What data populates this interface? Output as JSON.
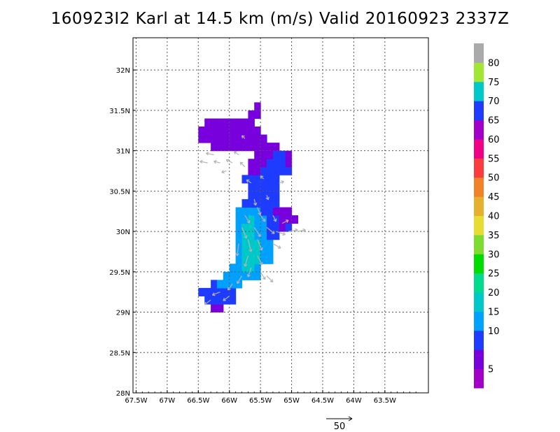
{
  "title": "160923I2 Karl at 14.5 km (m/s) Valid 20160923 2337Z",
  "map": {
    "lon_range": [
      -67.55,
      -62.8
    ],
    "lat_range": [
      28.0,
      32.4
    ],
    "x_ticks": [
      {
        "value": -67.5,
        "label": "67.5W"
      },
      {
        "value": -67.0,
        "label": "67W"
      },
      {
        "value": -66.5,
        "label": "66.5W"
      },
      {
        "value": -66.0,
        "label": "66W"
      },
      {
        "value": -65.5,
        "label": "65.5W"
      },
      {
        "value": -65.0,
        "label": "65W"
      },
      {
        "value": -64.5,
        "label": "64.5W"
      },
      {
        "value": -64.0,
        "label": "64W"
      },
      {
        "value": -63.5,
        "label": "63.5W"
      }
    ],
    "y_ticks": [
      {
        "value": 28.0,
        "label": "28N"
      },
      {
        "value": 28.5,
        "label": "28.5N"
      },
      {
        "value": 29.0,
        "label": "29N"
      },
      {
        "value": 29.5,
        "label": "29.5N"
      },
      {
        "value": 30.0,
        "label": "30N"
      },
      {
        "value": 30.5,
        "label": "30.5N"
      },
      {
        "value": 31.0,
        "label": "31N"
      },
      {
        "value": 31.5,
        "label": "31.5N"
      },
      {
        "value": 32.0,
        "label": "32N"
      }
    ],
    "grid": "dotted",
    "field_description_note_free": true,
    "cells": {
      "lon_start": -66.45,
      "lat_start": 29.05,
      "step": 0.1,
      "note": "rows listed from south to north; each row: [lat_index, lon_index_start, speed values m/s]",
      "rows": [
        [
          0,
          2,
          [
            7,
            7
          ]
        ],
        [
          1,
          1,
          [
            10,
            10,
            10,
            12,
            10
          ]
        ],
        [
          2,
          0,
          [
            10,
            12,
            12,
            10,
            10,
            10
          ]
        ],
        [
          3,
          2,
          [
            10,
            15,
            16,
            16,
            15
          ]
        ],
        [
          4,
          4,
          [
            17,
            18,
            18,
            17,
            16,
            15
          ]
        ],
        [
          5,
          5,
          [
            18,
            19,
            20,
            20,
            18
          ]
        ],
        [
          6,
          6,
          [
            18,
            21,
            22,
            20,
            17,
            15
          ]
        ],
        [
          7,
          6,
          [
            19,
            21,
            23,
            21,
            18,
            15
          ]
        ],
        [
          8,
          6,
          [
            18,
            21,
            22,
            20,
            18,
            15
          ]
        ],
        [
          9,
          6,
          [
            17,
            22,
            21,
            19,
            17,
            14,
            11
          ]
        ],
        [
          10,
          6,
          [
            17,
            20,
            22,
            18,
            16,
            13,
            11,
            9,
            10
          ]
        ],
        [
          11,
          6,
          [
            16,
            19,
            20,
            18,
            15,
            12,
            10,
            8,
            6,
            8
          ]
        ],
        [
          12,
          6,
          [
            15,
            17,
            18,
            16,
            14,
            11,
            9,
            7,
            5
          ]
        ],
        [
          13,
          7,
          [
            13,
            13,
            14,
            12,
            11,
            10
          ]
        ],
        [
          14,
          8,
          [
            11,
            12,
            13,
            12,
            10
          ]
        ],
        [
          15,
          8,
          [
            10,
            12,
            13,
            11,
            10
          ]
        ],
        [
          16,
          7,
          [
            10,
            11,
            11,
            10,
            12,
            10
          ]
        ],
        [
          17,
          8,
          [
            8,
            9,
            10,
            11,
            10,
            12,
            10
          ]
        ],
        [
          18,
          8,
          [
            6,
            8,
            8,
            10,
            11,
            12,
            9
          ]
        ],
        [
          19,
          9,
          [
            6,
            7,
            9,
            11,
            10,
            7
          ]
        ],
        [
          20,
          2,
          [
            8,
            7,
            6,
            7,
            6,
            6,
            8,
            8,
            5,
            7,
            6
          ]
        ],
        [
          21,
          0,
          [
            7,
            8,
            9,
            8,
            7,
            6,
            7,
            6,
            5,
            5,
            6
          ]
        ],
        [
          22,
          0,
          [
            7,
            6,
            6,
            5,
            6,
            7,
            6,
            5,
            6,
            6
          ]
        ],
        [
          23,
          1,
          [
            6,
            6,
            5,
            5,
            6,
            5,
            5,
            6
          ]
        ],
        [
          24,
          8,
          [
            5,
            6
          ]
        ],
        [
          25,
          9,
          [
            6
          ]
        ]
      ]
    },
    "vectors": [
      {
        "lon": -66.3,
        "lat": 29.15,
        "u": -4,
        "v": -3
      },
      {
        "lon": -66.15,
        "lat": 29.25,
        "u": -5,
        "v": -2
      },
      {
        "lon": -66.0,
        "lat": 29.2,
        "u": -4,
        "v": -3
      },
      {
        "lon": -65.95,
        "lat": 29.35,
        "u": -3,
        "v": -4
      },
      {
        "lon": -65.8,
        "lat": 29.45,
        "u": -3,
        "v": -5
      },
      {
        "lon": -65.65,
        "lat": 29.55,
        "u": -2,
        "v": -6
      },
      {
        "lon": -65.5,
        "lat": 29.5,
        "u": 3,
        "v": -5
      },
      {
        "lon": -65.4,
        "lat": 29.45,
        "u": 4,
        "v": -4
      },
      {
        "lon": -65.7,
        "lat": 29.7,
        "u": -2,
        "v": -7
      },
      {
        "lon": -65.55,
        "lat": 29.7,
        "u": 3,
        "v": -6
      },
      {
        "lon": -65.85,
        "lat": 29.85,
        "u": -1,
        "v": -8
      },
      {
        "lon": -65.7,
        "lat": 29.9,
        "u": 2,
        "v": -8
      },
      {
        "lon": -65.55,
        "lat": 29.9,
        "u": 3,
        "v": -7
      },
      {
        "lon": -65.8,
        "lat": 30.05,
        "u": 3,
        "v": -7
      },
      {
        "lon": -65.6,
        "lat": 30.05,
        "u": 4,
        "v": -6
      },
      {
        "lon": -65.4,
        "lat": 30.05,
        "u": 5,
        "v": -4
      },
      {
        "lon": -65.25,
        "lat": 30.0,
        "u": 6,
        "v": -2
      },
      {
        "lon": -65.05,
        "lat": 30.0,
        "u": 6,
        "v": 1
      },
      {
        "lon": -64.9,
        "lat": 30.0,
        "u": 5,
        "v": 1
      },
      {
        "lon": -65.75,
        "lat": 30.2,
        "u": 3,
        "v": -5
      },
      {
        "lon": -65.5,
        "lat": 30.2,
        "u": 3,
        "v": -4
      },
      {
        "lon": -65.3,
        "lat": 30.2,
        "u": 2,
        "v": -4
      },
      {
        "lon": -65.6,
        "lat": 30.4,
        "u": 1,
        "v": -4
      },
      {
        "lon": -65.4,
        "lat": 30.45,
        "u": 1,
        "v": -3
      },
      {
        "lon": -65.2,
        "lat": 30.6,
        "u": 3,
        "v": 1
      },
      {
        "lon": -65.45,
        "lat": 30.65,
        "u": -2,
        "v": 2
      },
      {
        "lon": -65.65,
        "lat": 30.6,
        "u": -3,
        "v": 2
      },
      {
        "lon": -65.75,
        "lat": 30.8,
        "u": -3,
        "v": 3
      },
      {
        "lon": -65.95,
        "lat": 30.85,
        "u": -4,
        "v": 2
      },
      {
        "lon": -66.15,
        "lat": 30.85,
        "u": -4,
        "v": 1
      },
      {
        "lon": -66.35,
        "lat": 30.85,
        "u": -5,
        "v": 1
      },
      {
        "lon": -66.25,
        "lat": 30.95,
        "u": -5,
        "v": 1
      },
      {
        "lon": -65.85,
        "lat": 30.95,
        "u": -3,
        "v": 2
      },
      {
        "lon": -65.75,
        "lat": 31.15,
        "u": -2,
        "v": 2
      },
      {
        "lon": -66.05,
        "lat": 30.75,
        "u": -3,
        "v": -1
      },
      {
        "lon": -65.55,
        "lat": 30.3,
        "u": 2,
        "v": -5
      },
      {
        "lon": -65.3,
        "lat": 29.85,
        "u": 5,
        "v": -3
      },
      {
        "lon": -65.15,
        "lat": 30.1,
        "u": 4,
        "v": 2
      }
    ]
  },
  "colorbar": {
    "bands": [
      {
        "color": "#a000c8"
      },
      {
        "color": "#7800dc"
      },
      {
        "color": "#1e3cff"
      },
      {
        "color": "#00a0ff"
      },
      {
        "color": "#00c8c8"
      },
      {
        "color": "#00dc8c"
      },
      {
        "color": "#00dc00"
      },
      {
        "color": "#7ddc2f"
      },
      {
        "color": "#e6dc32"
      },
      {
        "color": "#e6af2d"
      },
      {
        "color": "#f08228"
      },
      {
        "color": "#fa3c3c"
      },
      {
        "color": "#f00082"
      },
      {
        "color": "#a000c8"
      },
      {
        "color": "#1e3cff"
      },
      {
        "color": "#00c8c8"
      },
      {
        "color": "#a0e632"
      },
      {
        "color": "#aaaaaa"
      }
    ],
    "labels": [
      "5",
      "10",
      "15",
      "20",
      "25",
      "30",
      "35",
      "40",
      "45",
      "50",
      "55",
      "60",
      "65",
      "70",
      "75",
      "80"
    ],
    "label_band_index": [
      1,
      3,
      4,
      5,
      6,
      7,
      8,
      9,
      10,
      11,
      12,
      13,
      14,
      15,
      16,
      17
    ]
  },
  "reference_vector": {
    "label": "50"
  }
}
